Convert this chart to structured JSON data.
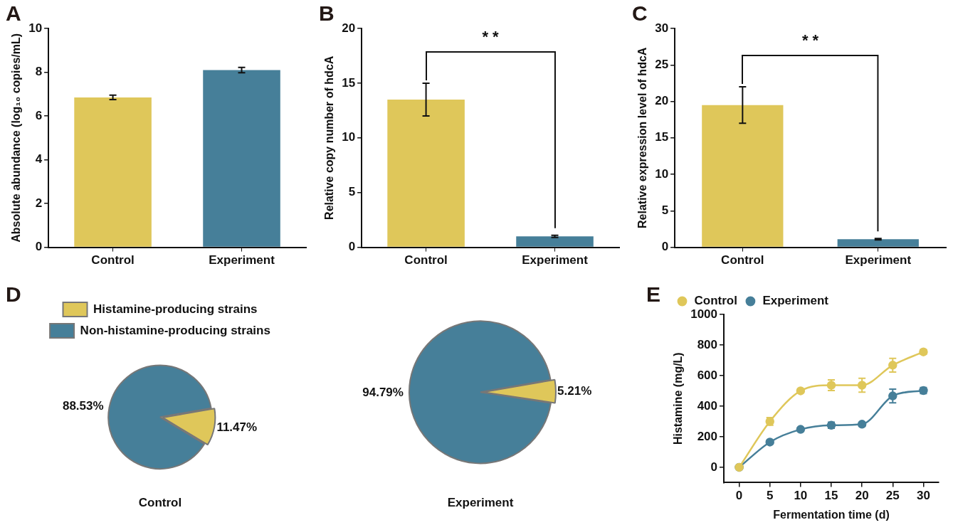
{
  "chart_data": [
    {
      "type": "bar",
      "annotations": [
        "A"
      ],
      "ylabel": "Absolute abundance (log₁₀ copies/mL)",
      "categories": [
        "Control",
        "Experiment"
      ],
      "values": [
        6.85,
        8.1
      ],
      "errors": [
        0.1,
        0.12
      ],
      "colors": [
        "#dfc75a",
        "#467f99"
      ],
      "ylim": [
        0,
        10
      ],
      "yticks": [
        0,
        2,
        4,
        6,
        8,
        10
      ]
    },
    {
      "type": "bar",
      "annotations": [
        "B",
        "* *"
      ],
      "ylabel": "Relative copy number of hdcA",
      "categories": [
        "Control",
        "Experiment"
      ],
      "values": [
        13.5,
        1.0
      ],
      "errors": [
        1.5,
        0.1
      ],
      "colors": [
        "#dfc75a",
        "#467f99"
      ],
      "ylim": [
        0,
        20
      ],
      "yticks": [
        0,
        5,
        10,
        15,
        20
      ]
    },
    {
      "type": "bar",
      "annotations": [
        "C",
        "* *"
      ],
      "ylabel": "Relative expression level of hdcA",
      "categories": [
        "Control",
        "Experiment"
      ],
      "values": [
        19.5,
        1.1
      ],
      "errors": [
        2.5,
        0.1
      ],
      "colors": [
        "#dfc75a",
        "#467f99"
      ],
      "ylim": [
        0,
        30
      ],
      "yticks": [
        0,
        5,
        10,
        15,
        20,
        25,
        30
      ]
    },
    {
      "type": "pie",
      "annotations": [
        "D"
      ],
      "title": "Control",
      "categories": [
        "Histamine-producing strains",
        "Non-histamine-producing strains"
      ],
      "values": [
        11.47,
        88.53
      ],
      "value_labels": [
        "11.47%",
        "88.53%"
      ],
      "colors": [
        "#dfc75a",
        "#467f99"
      ],
      "legend": "top"
    },
    {
      "type": "pie",
      "title": "Experiment",
      "categories": [
        null,
        null
      ],
      "values": [
        5.21,
        94.79
      ],
      "value_labels": [
        "5.21%",
        "94.79%"
      ],
      "colors": [
        "#dfc75a",
        "#467f99"
      ]
    },
    {
      "type": "line",
      "annotations": [
        "E"
      ],
      "xlabel": "Fermentation time (d)",
      "ylabel": "Histamine (mg/L)",
      "x": [
        0,
        5,
        10,
        15,
        20,
        25,
        30
      ],
      "xlim": [
        -2.5,
        32.5
      ],
      "xticks": [
        0,
        5,
        10,
        15,
        20,
        25,
        30
      ],
      "ylim": [
        -100,
        1000
      ],
      "yticks": [
        0,
        200,
        400,
        600,
        800,
        1000
      ],
      "legend": "top left",
      "marker": "circle",
      "series": [
        {
          "name": "Control",
          "color": "#dfc75a",
          "values": [
            0,
            300,
            500,
            537,
            537,
            668,
            755
          ],
          "errors": [
            null,
            25,
            10,
            35,
            45,
            45,
            15
          ]
        },
        {
          "name": "Experiment",
          "color": "#467f99",
          "values": [
            0,
            165,
            248,
            275,
            282,
            467,
            502
          ],
          "errors": [
            null,
            10,
            12,
            20,
            12,
            45,
            20
          ]
        }
      ]
    }
  ]
}
